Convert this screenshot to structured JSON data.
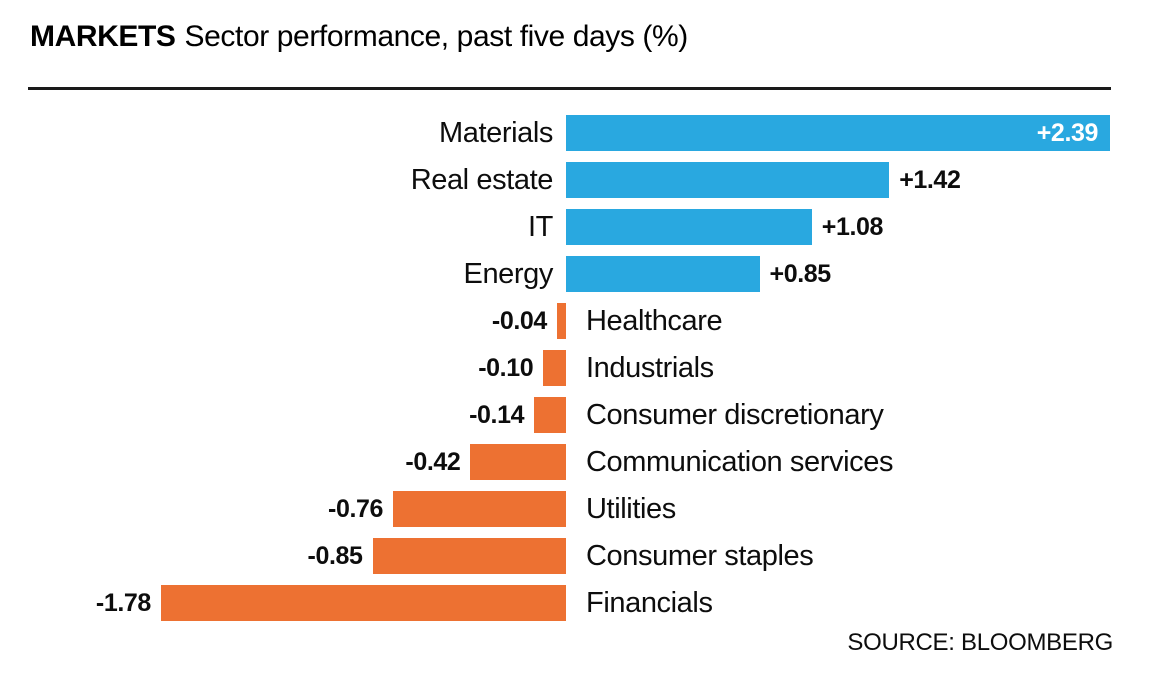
{
  "header": {
    "title_bold": "MARKETS",
    "title_rest": "Sector performance, past five days (%)"
  },
  "chart_data": {
    "type": "bar",
    "orientation": "horizontal",
    "title": "MARKETS Sector performance, past five days (%)",
    "xlabel": "",
    "ylabel": "",
    "xlim": [
      -1.9,
      2.5
    ],
    "grid": false,
    "legend": false,
    "categories": [
      "Materials",
      "Real estate",
      "IT",
      "Energy",
      "Healthcare",
      "Industrials",
      "Consumer discretionary",
      "Communication services",
      "Utilities",
      "Consumer staples",
      "Financials"
    ],
    "values": [
      2.39,
      1.42,
      1.08,
      0.85,
      -0.04,
      -0.1,
      -0.14,
      -0.42,
      -0.76,
      -0.85,
      -1.78
    ],
    "value_labels": [
      "+2.39",
      "+1.42",
      "+1.08",
      "+0.85",
      "-0.04",
      "-0.10",
      "-0.14",
      "-0.42",
      "-0.76",
      "-0.85",
      "-1.78"
    ],
    "inside_value_categories": [
      "Materials"
    ],
    "positive_color": "#29A8E0",
    "negative_color": "#ED7132"
  },
  "source": {
    "label": "SOURCE: BLOOMBERG"
  }
}
